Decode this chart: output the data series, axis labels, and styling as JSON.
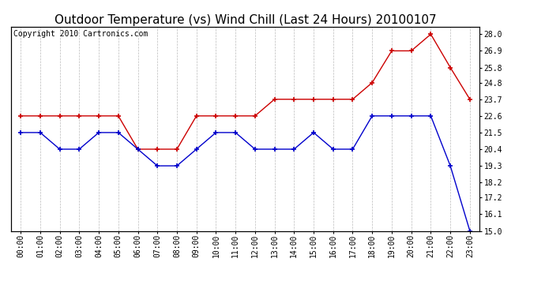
{
  "title": "Outdoor Temperature (vs) Wind Chill (Last 24 Hours) 20100107",
  "copyright": "Copyright 2010 Cartronics.com",
  "x_labels": [
    "00:00",
    "01:00",
    "02:00",
    "03:00",
    "04:00",
    "05:00",
    "06:00",
    "07:00",
    "08:00",
    "09:00",
    "10:00",
    "11:00",
    "12:00",
    "13:00",
    "14:00",
    "15:00",
    "16:00",
    "17:00",
    "18:00",
    "19:00",
    "20:00",
    "21:00",
    "22:00",
    "23:00"
  ],
  "temp_red": [
    22.6,
    22.6,
    22.6,
    22.6,
    22.6,
    22.6,
    20.4,
    20.4,
    20.4,
    22.6,
    22.6,
    22.6,
    22.6,
    23.7,
    23.7,
    23.7,
    23.7,
    23.7,
    24.8,
    26.9,
    26.9,
    28.0,
    25.8,
    23.7
  ],
  "wind_blue": [
    21.5,
    21.5,
    20.4,
    20.4,
    21.5,
    21.5,
    20.4,
    19.3,
    19.3,
    20.4,
    21.5,
    21.5,
    20.4,
    20.4,
    20.4,
    21.5,
    20.4,
    20.4,
    22.6,
    22.6,
    22.6,
    22.6,
    19.3,
    15.0
  ],
  "ylim": [
    15.0,
    28.5
  ],
  "yticks_right": [
    15.0,
    16.1,
    17.2,
    18.2,
    19.3,
    20.4,
    21.5,
    22.6,
    23.7,
    24.8,
    25.8,
    26.9,
    28.0
  ],
  "red_color": "#cc0000",
  "blue_color": "#0000cc",
  "grid_color": "#bbbbbb",
  "bg_color": "#ffffff",
  "title_fontsize": 11,
  "copyright_fontsize": 7,
  "tick_fontsize": 7,
  "ytick_fontsize": 7
}
